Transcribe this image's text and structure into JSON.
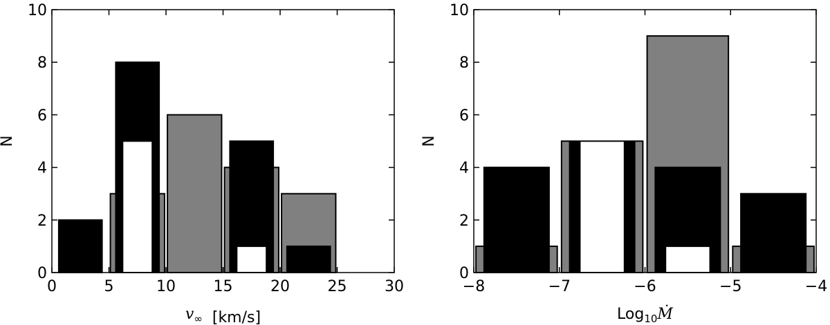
{
  "chart_data": [
    {
      "type": "histogram",
      "ylabel": "N",
      "xlabel": {
        "symbol": "v",
        "subscript": "∞",
        "unit": "[km/s]"
      },
      "bins": [
        0,
        5,
        10,
        15,
        20,
        25,
        30
      ],
      "series": [
        {
          "color": "#808080",
          "values": [
            0,
            3,
            6,
            4,
            3,
            0
          ]
        },
        {
          "color": "#000000",
          "values": [
            2,
            8,
            0,
            5,
            1,
            0
          ]
        },
        {
          "color": "#ffffff",
          "values": [
            0,
            5,
            0,
            1,
            0,
            0
          ]
        }
      ],
      "xlim": [
        0,
        30
      ],
      "ylim": [
        0,
        10
      ],
      "xticks": [
        0,
        5,
        10,
        15,
        20,
        25,
        30
      ],
      "yticks": [
        0,
        2,
        4,
        6,
        8,
        10
      ],
      "grid": false
    },
    {
      "type": "histogram",
      "ylabel": "N",
      "xlabel": {
        "base": "Log",
        "subscript": "10",
        "symbol": "Ṁ"
      },
      "bins": [
        -8,
        -7,
        -6,
        -5,
        -4
      ],
      "series": [
        {
          "color": "#808080",
          "values": [
            1,
            5,
            9,
            1
          ]
        },
        {
          "color": "#000000",
          "values": [
            4,
            5,
            4,
            3
          ]
        },
        {
          "color": "#ffffff",
          "values": [
            0,
            5,
            1,
            0
          ]
        }
      ],
      "xlim": [
        -8,
        -4
      ],
      "ylim": [
        0,
        10
      ],
      "xticks": [
        {
          "value": -8,
          "label": "−8"
        },
        {
          "value": -7,
          "label": "−7"
        },
        {
          "value": -6,
          "label": "−6"
        },
        {
          "value": -5,
          "label": "−5"
        },
        {
          "value": -4,
          "label": "−4"
        }
      ],
      "yticks": [
        0,
        2,
        4,
        6,
        8,
        10
      ],
      "grid": false
    }
  ]
}
